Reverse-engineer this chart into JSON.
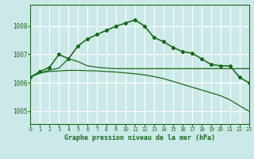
{
  "background_color": "#cce9e9",
  "grid_color": "#ffffff",
  "line_color": "#1a6b1a",
  "xlabel": "Graphe pression niveau de la mer (hPa)",
  "xlim": [
    0,
    23
  ],
  "ylim": [
    1004.55,
    1008.75
  ],
  "yticks": [
    1005,
    1006,
    1007,
    1008
  ],
  "xticks": [
    0,
    1,
    2,
    3,
    4,
    5,
    6,
    7,
    8,
    9,
    10,
    11,
    12,
    13,
    14,
    15,
    16,
    17,
    18,
    19,
    20,
    21,
    22,
    23
  ],
  "series_main_y": [
    1006.2,
    1006.4,
    1006.55,
    1007.0,
    1006.85,
    1007.3,
    1007.55,
    1007.7,
    1007.85,
    1008.0,
    1008.1,
    1008.22,
    1008.0,
    1007.6,
    1007.45,
    1007.25,
    1007.1,
    1007.05,
    1006.85,
    1006.65,
    1006.6,
    1006.6,
    1006.2,
    1006.0
  ],
  "series_flat_y": [
    1006.2,
    1006.35,
    1006.45,
    1006.52,
    1006.85,
    1006.75,
    1006.6,
    1006.55,
    1006.52,
    1006.5,
    1006.5,
    1006.5,
    1006.5,
    1006.5,
    1006.5,
    1006.5,
    1006.5,
    1006.5,
    1006.5,
    1006.5,
    1006.5,
    1006.5,
    1006.5,
    1006.5
  ],
  "series_desc_y": [
    1006.2,
    1006.35,
    1006.4,
    1006.42,
    1006.44,
    1006.44,
    1006.43,
    1006.42,
    1006.4,
    1006.38,
    1006.35,
    1006.32,
    1006.28,
    1006.22,
    1006.15,
    1006.05,
    1005.95,
    1005.85,
    1005.75,
    1005.65,
    1005.55,
    1005.4,
    1005.2,
    1005.0
  ],
  "series_x": [
    0,
    1,
    2,
    3,
    4,
    5,
    6,
    7,
    8,
    9,
    10,
    11,
    12,
    13,
    14,
    15,
    16,
    17,
    18,
    19,
    20,
    21,
    22,
    23
  ]
}
